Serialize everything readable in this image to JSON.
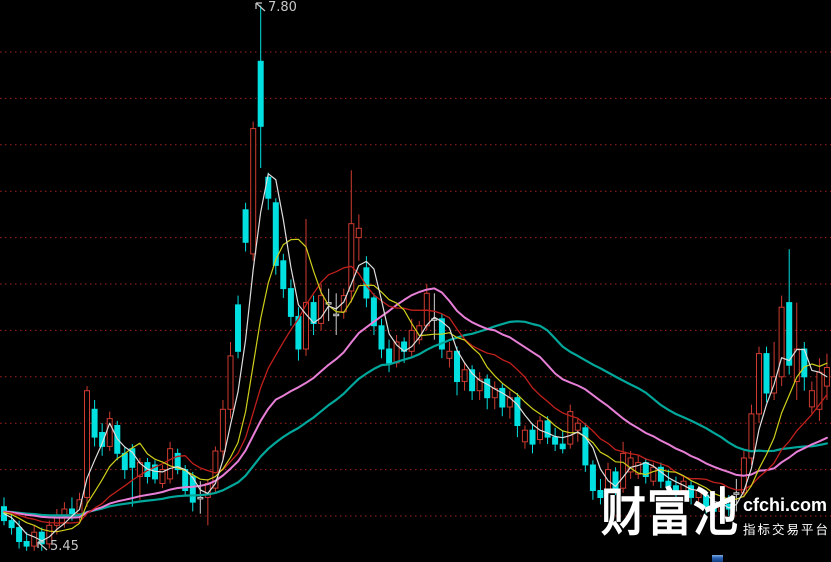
{
  "watermark": {
    "brand": "财富池",
    "domain": "cfchi.com",
    "tagline": "指标交易平台"
  },
  "chart_data": {
    "type": "candlestick",
    "title": "",
    "xlabel": "",
    "ylabel": "",
    "annotations": {
      "high": {
        "text": "7.80",
        "price": 7.8,
        "candle_index": 34
      },
      "low": {
        "text": "5.45",
        "price": 5.45,
        "candle_index": 5
      }
    },
    "y_axis": {
      "gridline_prices": [
        7.6,
        7.4,
        7.2,
        7.0,
        6.8,
        6.6,
        6.4,
        6.2,
        6.0,
        5.8,
        5.6
      ],
      "gridline_interval": 0.2,
      "price_max": 7.8,
      "price_min": 5.45,
      "grid": "dotted"
    },
    "legend_position": "none",
    "prehistory_close": 5.62,
    "candles": [
      [
        5.64,
        5.68,
        5.56,
        5.58
      ],
      [
        5.58,
        5.62,
        5.52,
        5.55
      ],
      [
        5.55,
        5.58,
        5.46,
        5.49
      ],
      [
        5.49,
        5.53,
        5.45,
        5.47
      ],
      [
        5.47,
        5.56,
        5.45,
        5.53
      ],
      [
        5.53,
        5.55,
        5.45,
        5.48
      ],
      [
        5.48,
        5.58,
        5.46,
        5.56
      ],
      [
        5.56,
        5.63,
        5.52,
        5.6
      ],
      [
        5.6,
        5.66,
        5.55,
        5.63
      ],
      [
        5.63,
        5.68,
        5.58,
        5.61
      ],
      [
        5.61,
        5.7,
        5.58,
        5.67
      ],
      [
        5.68,
        6.16,
        5.64,
        6.14
      ],
      [
        6.06,
        6.1,
        5.9,
        5.94
      ],
      [
        5.96,
        6.0,
        5.86,
        5.9
      ],
      [
        5.9,
        6.05,
        5.88,
        6.02
      ],
      [
        5.99,
        6.01,
        5.84,
        5.87
      ],
      [
        5.87,
        5.9,
        5.76,
        5.8
      ],
      [
        5.89,
        5.91,
        5.64,
        5.81
      ],
      [
        5.77,
        5.85,
        5.67,
        5.83
      ],
      [
        5.83,
        5.85,
        5.74,
        5.77
      ],
      [
        5.82,
        5.84,
        5.74,
        5.76
      ],
      [
        5.74,
        5.82,
        5.72,
        5.8
      ],
      [
        5.76,
        5.92,
        5.74,
        5.89
      ],
      [
        5.87,
        5.89,
        5.78,
        5.8
      ],
      [
        5.8,
        5.82,
        5.69,
        5.71
      ],
      [
        5.77,
        5.79,
        5.62,
        5.66
      ],
      [
        5.68,
        5.75,
        5.61,
        5.68
      ],
      [
        5.68,
        5.76,
        5.56,
        5.74
      ],
      [
        5.72,
        5.9,
        5.7,
        5.88
      ],
      [
        5.88,
        6.1,
        5.84,
        6.06
      ],
      [
        6.06,
        6.35,
        6.02,
        6.29
      ],
      [
        6.51,
        6.55,
        6.28,
        6.31
      ],
      [
        6.92,
        6.95,
        6.74,
        6.78
      ],
      [
        6.73,
        7.3,
        6.7,
        7.27
      ],
      [
        7.56,
        7.8,
        7.1,
        7.28
      ],
      [
        7.06,
        7.08,
        6.92,
        6.97
      ],
      [
        6.95,
        6.97,
        6.64,
        6.68
      ],
      [
        6.7,
        6.73,
        6.54,
        6.58
      ],
      [
        6.58,
        6.62,
        6.42,
        6.46
      ],
      [
        6.46,
        6.5,
        6.27,
        6.32
      ],
      [
        6.32,
        6.88,
        6.29,
        6.52
      ],
      [
        6.52,
        6.55,
        6.38,
        6.43
      ],
      [
        6.43,
        6.6,
        6.4,
        6.55
      ],
      [
        6.52,
        6.58,
        6.44,
        6.52
      ],
      [
        6.47,
        6.56,
        6.38,
        6.47
      ],
      [
        6.48,
        6.58,
        6.45,
        6.55
      ],
      [
        6.57,
        7.09,
        6.52,
        6.86
      ],
      [
        6.8,
        6.9,
        6.7,
        6.84
      ],
      [
        6.67,
        6.72,
        6.5,
        6.54
      ],
      [
        6.54,
        6.56,
        6.38,
        6.42
      ],
      [
        6.42,
        6.45,
        6.28,
        6.32
      ],
      [
        6.32,
        6.36,
        6.22,
        6.26
      ],
      [
        6.26,
        6.38,
        6.24,
        6.35
      ],
      [
        6.35,
        6.37,
        6.26,
        6.31
      ],
      [
        6.31,
        6.45,
        6.28,
        6.4
      ],
      [
        6.36,
        6.44,
        6.34,
        6.42
      ],
      [
        6.42,
        6.6,
        6.4,
        6.56
      ],
      [
        6.45,
        6.56,
        6.36,
        6.45
      ],
      [
        6.45,
        6.47,
        6.28,
        6.32
      ],
      [
        6.28,
        6.35,
        6.24,
        6.31
      ],
      [
        6.31,
        6.33,
        6.12,
        6.18
      ],
      [
        6.18,
        6.26,
        6.14,
        6.23
      ],
      [
        6.23,
        6.25,
        6.1,
        6.14
      ],
      [
        6.14,
        6.22,
        6.1,
        6.19
      ],
      [
        6.19,
        6.21,
        6.06,
        6.11
      ],
      [
        6.11,
        6.18,
        6.06,
        6.15
      ],
      [
        6.15,
        6.17,
        6.03,
        6.07
      ],
      [
        6.07,
        6.14,
        6.02,
        6.11
      ],
      [
        6.11,
        6.13,
        5.94,
        5.99
      ],
      [
        5.92,
        5.99,
        5.89,
        5.97
      ],
      [
        5.97,
        6.0,
        5.87,
        5.91
      ],
      [
        5.93,
        6.03,
        5.91,
        6.01
      ],
      [
        6.01,
        6.03,
        5.91,
        5.94
      ],
      [
        5.94,
        5.98,
        5.88,
        5.91
      ],
      [
        5.91,
        5.97,
        5.87,
        5.89
      ],
      [
        5.91,
        6.08,
        5.89,
        6.05
      ],
      [
        5.97,
        6.02,
        5.92,
        6.0
      ],
      [
        5.98,
        6.0,
        5.79,
        5.82
      ],
      [
        5.82,
        5.84,
        5.67,
        5.71
      ],
      [
        5.71,
        5.76,
        5.65,
        5.68
      ],
      [
        5.71,
        5.83,
        5.69,
        5.8
      ],
      [
        5.79,
        5.81,
        5.69,
        5.72
      ],
      [
        5.72,
        5.92,
        5.7,
        5.87
      ],
      [
        5.79,
        5.88,
        5.76,
        5.85
      ],
      [
        5.78,
        5.86,
        5.76,
        5.83
      ],
      [
        5.83,
        5.85,
        5.74,
        5.77
      ],
      [
        5.75,
        5.83,
        5.73,
        5.81
      ],
      [
        5.81,
        5.83,
        5.72,
        5.75
      ],
      [
        5.75,
        5.8,
        5.71,
        5.73
      ],
      [
        5.73,
        5.77,
        5.68,
        5.7
      ],
      [
        5.71,
        5.77,
        5.69,
        5.75
      ],
      [
        5.73,
        5.75,
        5.65,
        5.68
      ],
      [
        5.68,
        5.73,
        5.64,
        5.71
      ],
      [
        5.69,
        5.71,
        5.61,
        5.64
      ],
      [
        5.64,
        5.69,
        5.59,
        5.62
      ],
      [
        5.62,
        5.67,
        5.57,
        5.65
      ],
      [
        5.65,
        5.69,
        5.6,
        5.63
      ],
      [
        5.7,
        5.76,
        5.62,
        5.7
      ],
      [
        5.7,
        5.88,
        5.68,
        5.85
      ],
      [
        5.85,
        6.08,
        5.82,
        6.04
      ],
      [
        6.04,
        6.33,
        6.0,
        6.3
      ],
      [
        6.3,
        6.33,
        6.09,
        6.13
      ],
      [
        6.13,
        6.35,
        6.1,
        6.2
      ],
      [
        6.2,
        6.55,
        6.16,
        6.5
      ],
      [
        6.52,
        6.75,
        6.21,
        6.25
      ],
      [
        6.18,
        6.52,
        6.1,
        6.32
      ],
      [
        6.32,
        6.35,
        6.14,
        6.2
      ],
      [
        6.07,
        6.18,
        6.04,
        6.14
      ],
      [
        6.06,
        6.28,
        6.01,
        6.22
      ],
      [
        6.16,
        6.3,
        6.1,
        6.24
      ]
    ],
    "moving_averages": [
      {
        "name": "ma-teal",
        "window": 40,
        "color": "#00a79b",
        "width": 2.2
      },
      {
        "name": "ma-magenta",
        "window": 26,
        "color": "#e77fd7",
        "width": 2.0
      },
      {
        "name": "ma-red",
        "window": 14,
        "color": "#c0201c",
        "width": 1.3
      },
      {
        "name": "ma-yellow",
        "window": 8,
        "color": "#cfcf1b",
        "width": 1.2
      },
      {
        "name": "ma-white",
        "window": 4,
        "color": "#dedede",
        "width": 1.2
      }
    ],
    "colors": {
      "background": "#000000",
      "grid": "#a32020",
      "up": "#ce3b30",
      "down": "#00e0e0",
      "neutral": "#cfcfcf",
      "label": "#c8c8c8"
    }
  }
}
